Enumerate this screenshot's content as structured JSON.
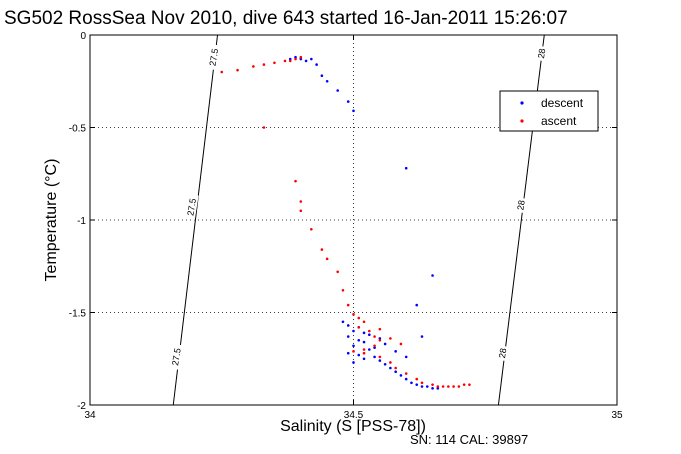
{
  "chart_data": {
    "type": "scatter",
    "title": "SG502 RossSea Nov 2010, dive 643 started 16-Jan-2011 15:26:07",
    "xlabel": "Salinity (S [PSS-78])",
    "ylabel": "Temperature (°C)",
    "xlim": [
      34,
      35
    ],
    "ylim": [
      -2,
      0
    ],
    "x_ticks": [
      "34",
      "34.5",
      "35"
    ],
    "y_ticks": [
      "0",
      "-0.5",
      "-1",
      "-1.5",
      "-2"
    ],
    "grid": true,
    "legend_position": "top-right",
    "footer": "SN: 114  CAL: 39897",
    "isopycnals": [
      {
        "label": "27.5",
        "points": [
          [
            34.242,
            0
          ],
          [
            34.158,
            -2
          ]
        ]
      },
      {
        "label": "28",
        "points": [
          [
            34.862,
            0
          ],
          [
            34.775,
            -2
          ]
        ]
      }
    ],
    "isopycnal_labels": [
      {
        "text": "27.5",
        "x": 34.235,
        "y": -0.12
      },
      {
        "text": "27.5",
        "x": 34.193,
        "y": -0.93
      },
      {
        "text": "27.5",
        "x": 34.164,
        "y": -1.74
      },
      {
        "text": "28",
        "x": 34.857,
        "y": -0.1
      },
      {
        "text": "28",
        "x": 34.818,
        "y": -0.92
      },
      {
        "text": "28",
        "x": 34.783,
        "y": -1.72
      }
    ],
    "series": [
      {
        "name": "descent",
        "color": "#0000ff",
        "points": [
          [
            34.38,
            -0.13
          ],
          [
            34.39,
            -0.12
          ],
          [
            34.4,
            -0.13
          ],
          [
            34.41,
            -0.14
          ],
          [
            34.42,
            -0.13
          ],
          [
            34.43,
            -0.16
          ],
          [
            34.44,
            -0.22
          ],
          [
            34.45,
            -0.25
          ],
          [
            34.47,
            -0.3
          ],
          [
            34.49,
            -0.36
          ],
          [
            34.5,
            -0.41
          ],
          [
            34.6,
            -0.72
          ],
          [
            34.65,
            -1.3
          ],
          [
            34.62,
            -1.46
          ],
          [
            34.63,
            -1.63
          ],
          [
            34.48,
            -1.55
          ],
          [
            34.49,
            -1.57
          ],
          [
            34.5,
            -1.6
          ],
          [
            34.51,
            -1.58
          ],
          [
            34.52,
            -1.61
          ],
          [
            34.53,
            -1.62
          ],
          [
            34.49,
            -1.63
          ],
          [
            34.51,
            -1.65
          ],
          [
            34.52,
            -1.66
          ],
          [
            34.5,
            -1.68
          ],
          [
            34.53,
            -1.7
          ],
          [
            34.54,
            -1.69
          ],
          [
            34.49,
            -1.72
          ],
          [
            34.51,
            -1.73
          ],
          [
            34.54,
            -1.74
          ],
          [
            34.55,
            -1.76
          ],
          [
            34.56,
            -1.78
          ],
          [
            34.57,
            -1.8
          ],
          [
            34.58,
            -1.82
          ],
          [
            34.59,
            -1.84
          ],
          [
            34.6,
            -1.86
          ],
          [
            34.61,
            -1.88
          ],
          [
            34.62,
            -1.89
          ],
          [
            34.63,
            -1.9
          ],
          [
            34.64,
            -1.9
          ],
          [
            34.65,
            -1.91
          ],
          [
            34.66,
            -1.91
          ],
          [
            34.55,
            -1.64
          ],
          [
            34.56,
            -1.67
          ],
          [
            34.58,
            -1.71
          ],
          [
            34.6,
            -1.74
          ],
          [
            34.52,
            -1.75
          ],
          [
            34.5,
            -1.77
          ]
        ]
      },
      {
        "name": "ascent",
        "color": "#ff0000",
        "points": [
          [
            34.25,
            -0.2
          ],
          [
            34.28,
            -0.19
          ],
          [
            34.31,
            -0.17
          ],
          [
            34.33,
            -0.16
          ],
          [
            34.35,
            -0.15
          ],
          [
            34.37,
            -0.14
          ],
          [
            34.38,
            -0.14
          ],
          [
            34.39,
            -0.13
          ],
          [
            34.4,
            -0.12
          ],
          [
            34.33,
            -0.5
          ],
          [
            34.39,
            -0.79
          ],
          [
            34.4,
            -0.9
          ],
          [
            34.4,
            -0.95
          ],
          [
            34.42,
            -1.05
          ],
          [
            34.44,
            -1.16
          ],
          [
            34.45,
            -1.21
          ],
          [
            34.47,
            -1.28
          ],
          [
            34.48,
            -1.38
          ],
          [
            34.49,
            -1.46
          ],
          [
            34.5,
            -1.51
          ],
          [
            34.51,
            -1.53
          ],
          [
            34.52,
            -1.55
          ],
          [
            34.51,
            -1.58
          ],
          [
            34.53,
            -1.6
          ],
          [
            34.54,
            -1.63
          ],
          [
            34.55,
            -1.65
          ],
          [
            34.54,
            -1.68
          ],
          [
            34.52,
            -1.7
          ],
          [
            34.5,
            -1.71
          ],
          [
            34.52,
            -1.72
          ],
          [
            34.55,
            -1.74
          ],
          [
            34.57,
            -1.77
          ],
          [
            34.58,
            -1.8
          ],
          [
            34.6,
            -1.83
          ],
          [
            34.62,
            -1.86
          ],
          [
            34.63,
            -1.88
          ],
          [
            34.65,
            -1.89
          ],
          [
            34.66,
            -1.9
          ],
          [
            34.67,
            -1.9
          ],
          [
            34.68,
            -1.9
          ],
          [
            34.69,
            -1.9
          ],
          [
            34.7,
            -1.9
          ],
          [
            34.71,
            -1.89
          ],
          [
            34.72,
            -1.89
          ],
          [
            34.55,
            -1.59
          ],
          [
            34.57,
            -1.64
          ],
          [
            34.59,
            -1.67
          ]
        ]
      }
    ]
  }
}
